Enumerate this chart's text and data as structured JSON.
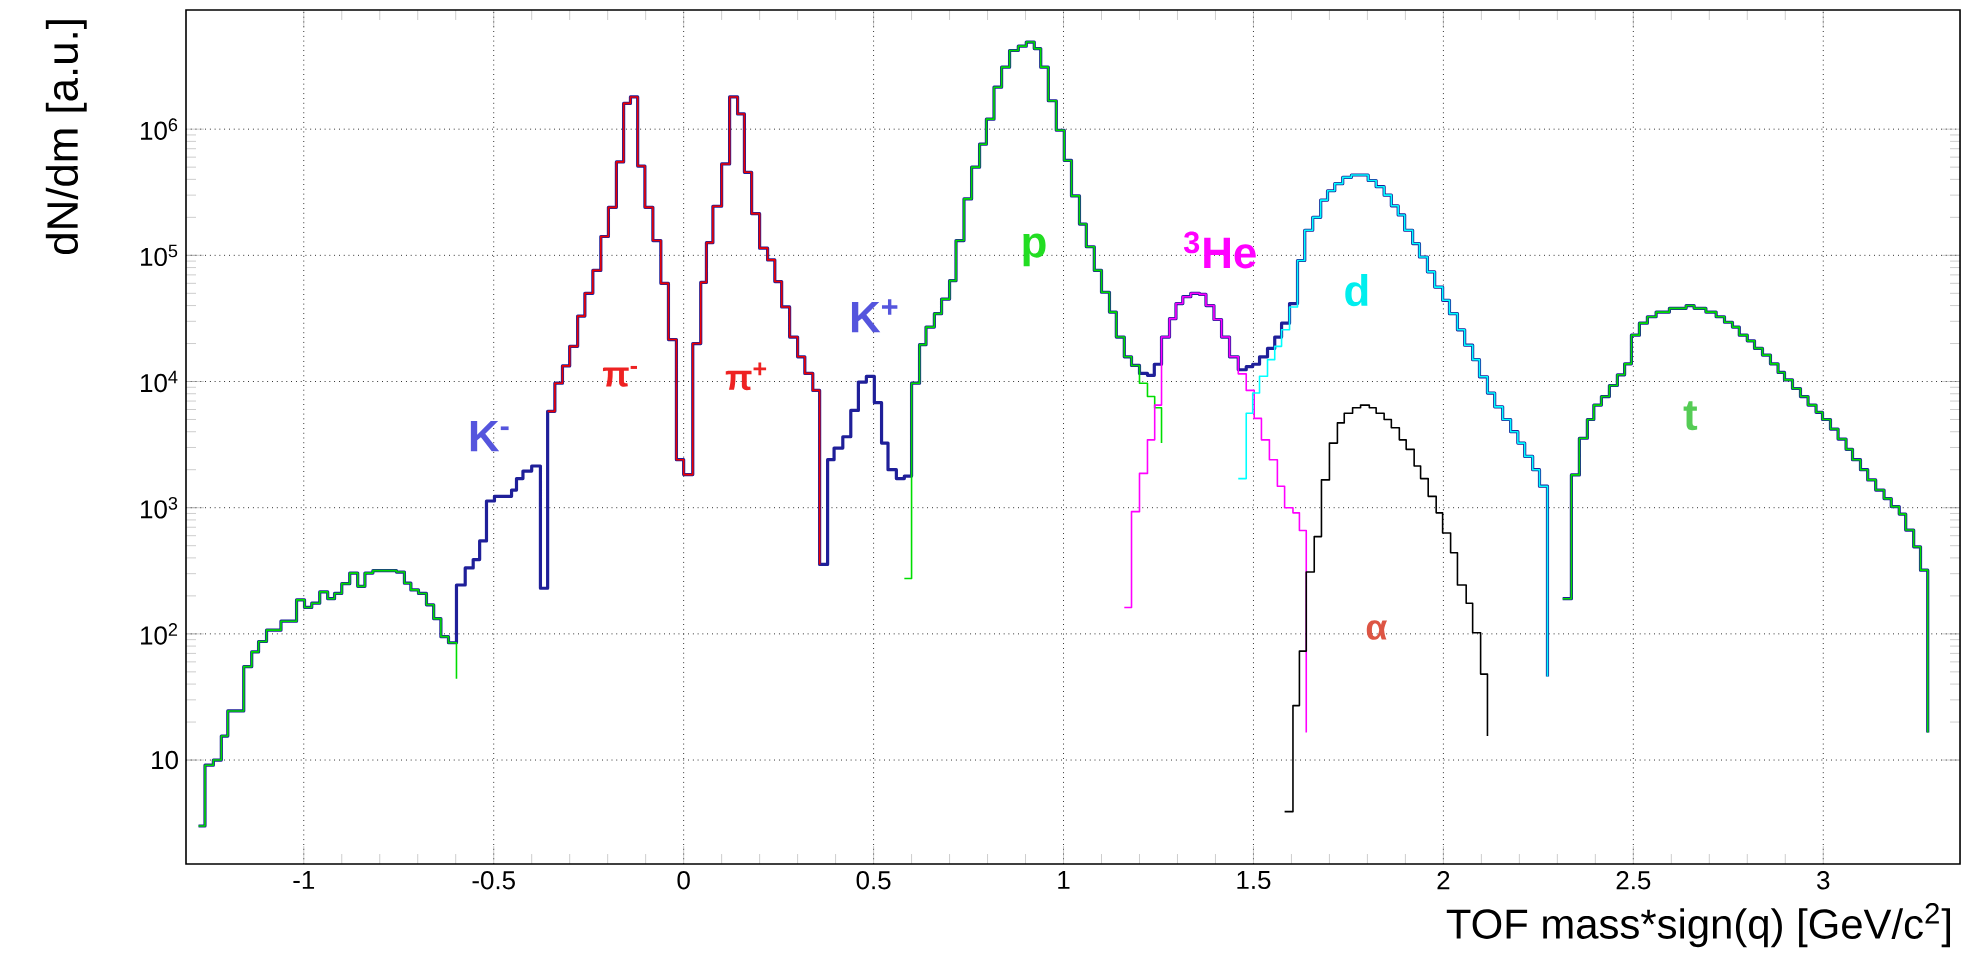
{
  "chart_data": {
    "type": "step",
    "xlabel": "TOF mass*sign(q) [GeV/c$^{2}$]",
    "ylabel": "dN/dm [a.u.]",
    "xlim": [
      -1.31,
      3.36
    ],
    "ylim": [
      1.5,
      8800000
    ],
    "log": "y",
    "grid": true,
    "xticks": [
      -1,
      -0.5,
      0,
      0.5,
      1,
      1.5,
      2,
      2.5,
      3
    ],
    "yticks": [
      10,
      {
        "value": 100,
        "label": "10$^{2}$"
      },
      {
        "value": 1000,
        "label": "10$^{3}$"
      },
      {
        "value": 10000,
        "label": "10$^{4}$"
      },
      {
        "value": 100000,
        "label": "10$^{5}$"
      },
      {
        "value": 1000000,
        "label": "10$^{6}$"
      }
    ],
    "series": [
      {
        "color": "#1f1f99",
        "x": [
          -1.277,
          -1.26,
          -1.238,
          -1.217,
          -1.2,
          -1.158,
          -1.137,
          -1.119,
          -1.098,
          -1.06,
          -1.019,
          -0.998,
          -0.979,
          -0.958,
          -0.937,
          -0.919,
          -0.9,
          -0.879,
          -0.858,
          -0.839,
          -0.818,
          -0.756,
          -0.735,
          -0.718,
          -0.698,
          -0.677,
          -0.658,
          -0.639,
          -0.619,
          -0.598,
          -0.575,
          -0.554,
          -0.537,
          -0.519,
          -0.498,
          -0.453,
          -0.44,
          -0.423,
          -0.4,
          -0.377,
          -0.358,
          -0.339,
          -0.319,
          -0.3,
          -0.279,
          -0.26,
          -0.239,
          -0.218,
          -0.198,
          -0.177,
          -0.158,
          -0.14,
          -0.121,
          -0.102,
          -0.081,
          -0.06,
          -0.04,
          -0.019,
          0.0,
          0.024,
          0.045,
          0.06,
          0.077,
          0.1,
          0.121,
          0.142,
          0.16,
          0.179,
          0.2,
          0.221,
          0.24,
          0.258,
          0.279,
          0.3,
          0.319,
          0.34,
          0.358,
          0.379,
          0.396,
          0.419,
          0.44,
          0.46,
          0.481,
          0.502,
          0.521,
          0.538,
          0.56,
          0.581,
          0.6,
          0.621,
          0.638,
          0.66,
          0.679,
          0.7,
          0.717,
          0.738,
          0.758,
          0.779,
          0.797,
          0.817,
          0.837,
          0.858,
          0.881,
          0.902,
          0.923,
          0.94,
          0.96,
          0.981,
          1.002,
          1.021,
          1.042,
          1.06,
          1.081,
          1.1,
          1.121,
          1.139,
          1.16,
          1.179,
          1.2,
          1.221,
          1.239,
          1.258,
          1.279,
          1.296,
          1.314,
          1.335,
          1.358,
          1.375,
          1.396,
          1.416,
          1.437,
          1.46,
          1.481,
          1.498,
          1.516,
          1.537,
          1.556,
          1.574,
          1.595,
          1.616,
          1.635,
          1.656,
          1.677,
          1.695,
          1.714,
          1.735,
          1.758,
          1.802,
          1.823,
          1.844,
          1.863,
          1.881,
          1.898,
          1.919,
          1.937,
          1.958,
          1.977,
          1.998,
          2.016,
          2.037,
          2.056,
          2.077,
          2.095,
          2.116,
          2.135,
          2.156,
          2.177,
          2.196,
          2.214,
          2.235,
          2.253,
          2.274,
          2.296,
          2.314,
          2.337,
          2.358,
          2.379,
          2.396,
          2.416,
          2.437,
          2.458,
          2.477,
          2.495,
          2.516,
          2.537,
          2.56,
          2.595,
          2.639,
          2.66,
          2.691,
          2.718,
          2.74,
          2.761,
          2.779,
          2.8,
          2.819,
          2.84,
          2.861,
          2.881,
          2.898,
          2.919,
          2.94,
          2.96,
          2.981,
          2.998,
          3.019,
          3.039,
          3.06,
          3.077,
          3.098,
          3.117,
          3.138,
          3.16,
          3.179,
          3.2,
          3.217,
          3.238,
          3.256,
          3.275
        ],
        "values": [
          3.0,
          9.1,
          10,
          15.5,
          24.5,
          55,
          72,
          87,
          107,
          126,
          186,
          162,
          175,
          215,
          190,
          209,
          250,
          303,
          238,
          303,
          317,
          309,
          252,
          223,
          209,
          170,
          132,
          95,
          85,
          244,
          333,
          388,
          545,
          1130,
          1230,
          1380,
          1700,
          1950,
          2140,
          230,
          5800,
          9700,
          13300,
          19000,
          33000,
          50000,
          76000,
          141000,
          240000,
          550000,
          1600000,
          1800000,
          510000,
          240000,
          131000,
          60000,
          21500,
          2400,
          1830,
          20000,
          61000,
          126000,
          245000,
          530000,
          1800000,
          1320000,
          455000,
          214000,
          114000,
          92000,
          62000,
          39000,
          22500,
          15700,
          11600,
          8500,
          355,
          2400,
          2970,
          3650,
          5900,
          9900,
          11000,
          6800,
          3250,
          2000,
          1700,
          1780,
          9700,
          19600,
          27000,
          34500,
          45000,
          63000,
          131000,
          280000,
          500000,
          760000,
          1200000,
          2150000,
          3100000,
          4200000,
          4550000,
          4900000,
          4350000,
          3100000,
          1680000,
          980000,
          565000,
          296000,
          177000,
          117000,
          76000,
          51000,
          35500,
          22500,
          15700,
          13400,
          11600,
          11200,
          13700,
          22500,
          31500,
          41500,
          47000,
          50000,
          49000,
          40000,
          31000,
          22500,
          15700,
          12400,
          13100,
          13700,
          15700,
          18300,
          22500,
          29000,
          41500,
          91000,
          158000,
          200000,
          274000,
          325000,
          370000,
          415000,
          433000,
          392000,
          350000,
          300000,
          247000,
          209000,
          158000,
          124000,
          97000,
          74000,
          56000,
          44000,
          34500,
          25700,
          19400,
          14900,
          10900,
          8100,
          6300,
          5000,
          4000,
          3250,
          2550,
          2000,
          1480,
          46,
          null,
          190,
          1820,
          3550,
          5000,
          6500,
          7600,
          9300,
          11300,
          13800,
          23300,
          29000,
          32600,
          35500,
          38000,
          40000,
          38000,
          35500,
          32600,
          29500,
          27000,
          23300,
          21000,
          18300,
          16200,
          13800,
          11800,
          10300,
          8800,
          7600,
          6500,
          5700,
          5000,
          4200,
          3500,
          2900,
          2400,
          2000,
          1660,
          1380,
          1180,
          1020,
          890,
          665,
          490,
          320,
          16.5
        ]
      },
      {
        "color": "#00dd00",
        "x": [
          -1.277,
          -1.26,
          -1.238,
          -1.217,
          -1.2,
          -1.158,
          -1.137,
          -1.119,
          -1.098,
          -1.06,
          -1.019,
          -0.998,
          -0.979,
          -0.958,
          -0.937,
          -0.919,
          -0.9,
          -0.879,
          -0.858,
          -0.839,
          -0.818,
          -0.756,
          -0.735,
          -0.718,
          -0.698,
          -0.677,
          -0.658,
          -0.639,
          -0.619,
          -0.598
        ],
        "values": [
          3.0,
          9.1,
          10,
          15.5,
          24.5,
          55,
          72,
          87,
          107,
          126,
          186,
          162,
          175,
          215,
          190,
          209,
          250,
          303,
          238,
          303,
          317,
          309,
          252,
          223,
          209,
          170,
          132,
          95,
          85,
          44
        ]
      },
      {
        "color": "#ee0000",
        "x": [
          -0.358,
          -0.339,
          -0.319,
          -0.3,
          -0.279,
          -0.26,
          -0.239,
          -0.218,
          -0.198,
          -0.177,
          -0.158,
          -0.14,
          -0.121,
          -0.102,
          -0.081,
          -0.06,
          -0.04,
          -0.019,
          0.0,
          0.024,
          0.045,
          0.06,
          0.077,
          0.1,
          0.121,
          0.142,
          0.16,
          0.179,
          0.2,
          0.221,
          0.24,
          0.258,
          0.279,
          0.3,
          0.319,
          0.34,
          0.358
        ],
        "values": [
          5800,
          9700,
          13300,
          19000,
          33000,
          50000,
          76000,
          141000,
          240000,
          550000,
          1600000,
          1800000,
          510000,
          240000,
          131000,
          60000,
          21500,
          2400,
          1830,
          20000,
          61000,
          126000,
          245000,
          530000,
          1800000,
          1320000,
          455000,
          214000,
          114000,
          92000,
          62000,
          39000,
          22500,
          15700,
          11600,
          8500,
          355
        ]
      },
      {
        "color": "#00dd00",
        "x": [
          0.581,
          0.6,
          0.621,
          0.638,
          0.66,
          0.679,
          0.7,
          0.717,
          0.738,
          0.758,
          0.779,
          0.797,
          0.817,
          0.837,
          0.858,
          0.881,
          0.902,
          0.923,
          0.94,
          0.96,
          0.981,
          1.002,
          1.021,
          1.042,
          1.06,
          1.081,
          1.1,
          1.121,
          1.139,
          1.16,
          1.179,
          1.2,
          1.221,
          1.24,
          1.258
        ],
        "values": [
          275,
          9700,
          19600,
          27000,
          34500,
          45000,
          63000,
          131000,
          280000,
          500000,
          760000,
          1200000,
          2150000,
          3100000,
          4200000,
          4550000,
          4900000,
          4350000,
          3100000,
          1680000,
          980000,
          565000,
          296000,
          177000,
          117000,
          76000,
          51000,
          35500,
          22500,
          15700,
          13400,
          9700,
          7600,
          6200,
          3250
        ]
      },
      {
        "color": "#ff00ff",
        "x": [
          1.16,
          1.179,
          1.2,
          1.221,
          1.24,
          1.258,
          1.279,
          1.296,
          1.314,
          1.335,
          1.358,
          1.375,
          1.396,
          1.416,
          1.437,
          1.46,
          1.481,
          1.502,
          1.521,
          1.542,
          1.563,
          1.582,
          1.604,
          1.621,
          1.639
        ],
        "values": [
          162,
          930,
          1870,
          3450,
          6500,
          22500,
          31500,
          41500,
          47000,
          50000,
          49000,
          40000,
          31000,
          22500,
          15700,
          11500,
          8500,
          5100,
          3450,
          2400,
          1480,
          1000,
          910,
          660,
          16.5
        ]
      },
      {
        "color": "#00ffff",
        "x": [
          1.46,
          1.481,
          1.498,
          1.516,
          1.537,
          1.556,
          1.574,
          1.595,
          1.616,
          1.635,
          1.656,
          1.677,
          1.695,
          1.714,
          1.735,
          1.758,
          1.802,
          1.823,
          1.844,
          1.863,
          1.881,
          1.898,
          1.919,
          1.937,
          1.958,
          1.977,
          1.998,
          2.016,
          2.037,
          2.056,
          2.077,
          2.095,
          2.116,
          2.135,
          2.156,
          2.177,
          2.196,
          2.214,
          2.235,
          2.253,
          2.274
        ],
        "values": [
          1700,
          5600,
          8100,
          11000,
          14900,
          19000,
          25700,
          39000,
          91000,
          158000,
          200000,
          274000,
          325000,
          370000,
          415000,
          433000,
          392000,
          350000,
          300000,
          247000,
          209000,
          158000,
          124000,
          97000,
          74000,
          56000,
          44000,
          34500,
          25700,
          19400,
          14900,
          10900,
          8100,
          6300,
          5000,
          4000,
          3250,
          2550,
          2000,
          1480,
          46
        ]
      },
      {
        "color": "#000000",
        "x": [
          1.582,
          1.604,
          1.621,
          1.639,
          1.66,
          1.679,
          1.7,
          1.721,
          1.739,
          1.761,
          1.782,
          1.805,
          1.823,
          1.844,
          1.863,
          1.884,
          1.902,
          1.923,
          1.94,
          1.96,
          1.981,
          1.998,
          2.019,
          2.037,
          2.06,
          2.077,
          2.098,
          2.116
        ],
        "values": [
          3.9,
          27,
          73,
          309,
          590,
          1660,
          3250,
          4700,
          5600,
          6200,
          6500,
          6200,
          5600,
          5000,
          4300,
          3450,
          2900,
          2140,
          1700,
          1230,
          910,
          630,
          440,
          244,
          175,
          102,
          48,
          15.5
        ]
      },
      {
        "color": "#00dd00",
        "x": [
          2.314,
          2.337,
          2.358,
          2.379,
          2.396,
          2.416,
          2.437,
          2.458,
          2.477,
          2.495,
          2.516,
          2.537,
          2.56,
          2.595,
          2.639,
          2.66,
          2.691,
          2.718,
          2.74,
          2.761,
          2.779,
          2.8,
          2.819,
          2.84,
          2.861,
          2.881,
          2.898,
          2.919,
          2.94,
          2.96,
          2.981,
          2.998,
          3.019,
          3.039,
          3.06,
          3.077,
          3.098,
          3.117,
          3.138,
          3.16,
          3.179,
          3.2,
          3.217,
          3.238,
          3.256,
          3.275
        ],
        "values": [
          190,
          1820,
          3550,
          5000,
          6500,
          7600,
          9300,
          11300,
          13800,
          23300,
          29000,
          32600,
          35500,
          38000,
          40000,
          38000,
          35500,
          32600,
          29500,
          27000,
          23300,
          21000,
          18300,
          16200,
          13800,
          11800,
          10300,
          8800,
          7600,
          6500,
          5700,
          5000,
          4200,
          3500,
          2900,
          2400,
          2000,
          1660,
          1380,
          1180,
          1020,
          890,
          665,
          490,
          320,
          16.5
        ]
      }
    ],
    "annotations": [
      "K$^{-}$",
      "π$^{-}$",
      "π$^{+}$",
      "K$^{+}$",
      "p",
      "$^{3}$He",
      "d",
      "t",
      "α"
    ]
  }
}
